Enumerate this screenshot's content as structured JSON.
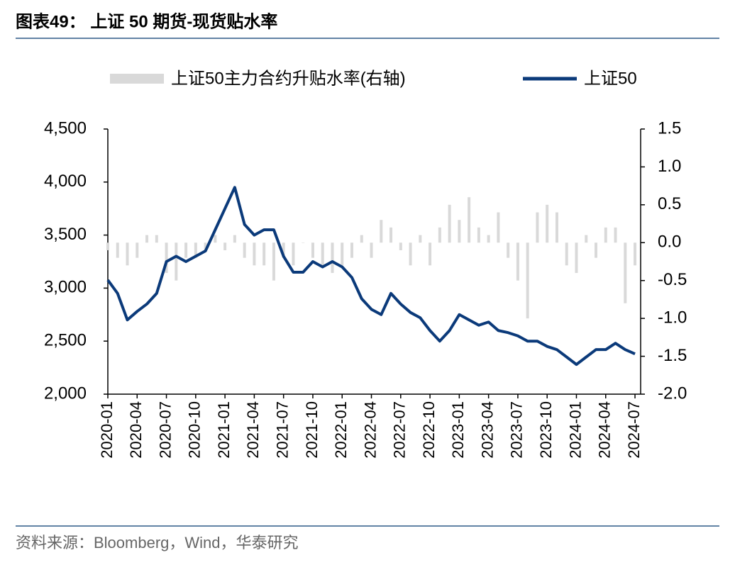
{
  "chart_data": {
    "type": "line",
    "title": "图表49： 上证 50 期货-现货贴水率",
    "source": "资料来源：Bloomberg，Wind，华泰研究",
    "categories": [
      "2020-01",
      "2020-02",
      "2020-03",
      "2020-04",
      "2020-05",
      "2020-06",
      "2020-07",
      "2020-08",
      "2020-09",
      "2020-10",
      "2020-11",
      "2020-12",
      "2021-01",
      "2021-02",
      "2021-03",
      "2021-04",
      "2021-05",
      "2021-06",
      "2021-07",
      "2021-08",
      "2021-09",
      "2021-10",
      "2021-11",
      "2021-12",
      "2022-01",
      "2022-02",
      "2022-03",
      "2022-04",
      "2022-05",
      "2022-06",
      "2022-07",
      "2022-08",
      "2022-09",
      "2022-10",
      "2022-11",
      "2022-12",
      "2023-01",
      "2023-02",
      "2023-03",
      "2023-04",
      "2023-05",
      "2023-06",
      "2023-07",
      "2023-08",
      "2023-09",
      "2023-10",
      "2023-11",
      "2023-12",
      "2024-01",
      "2024-02",
      "2024-03",
      "2024-04",
      "2024-05",
      "2024-06",
      "2024-07"
    ],
    "series": [
      {
        "name": "上证50主力合约升贴水率(右轴)",
        "type": "bar",
        "axis": "y2",
        "color": "#d9d9d9",
        "values": [
          -0.1,
          -0.2,
          -0.3,
          -0.2,
          0.1,
          0.1,
          -0.4,
          -0.5,
          -0.2,
          -0.2,
          -0.1,
          0.1,
          -0.1,
          0.1,
          -0.2,
          -0.3,
          -0.3,
          -0.5,
          -0.2,
          -0.3,
          0.0,
          -0.2,
          -0.3,
          -0.4,
          -0.3,
          -0.2,
          0.1,
          -0.2,
          0.3,
          0.2,
          -0.1,
          -0.3,
          0.1,
          -0.3,
          0.2,
          0.5,
          0.3,
          0.6,
          0.2,
          0.1,
          0.4,
          -0.2,
          -0.5,
          -1.0,
          0.4,
          0.5,
          0.4,
          -0.3,
          -0.4,
          0.1,
          -0.2,
          0.2,
          0.2,
          -0.8,
          -0.3
        ]
      },
      {
        "name": "上证50",
        "type": "line",
        "color": "#0b3a7a",
        "values": [
          3076,
          2950,
          2700,
          2780,
          2850,
          2950,
          3250,
          3300,
          3250,
          3300,
          3350,
          3550,
          3750,
          3950,
          3600,
          3500,
          3550,
          3550,
          3300,
          3150,
          3150,
          3250,
          3200,
          3250,
          3200,
          3100,
          2900,
          2800,
          2750,
          2950,
          2850,
          2770,
          2720,
          2600,
          2500,
          2600,
          2750,
          2700,
          2650,
          2680,
          2600,
          2580,
          2550,
          2500,
          2500,
          2450,
          2420,
          2350,
          2280,
          2350,
          2420,
          2420,
          2480,
          2420,
          2380
        ]
      }
    ],
    "ylim": [
      2000,
      4500
    ],
    "yticks": [
      {
        "value": 2000,
        "label": "2,000"
      },
      {
        "value": 2500,
        "label": "2,500"
      },
      {
        "value": 3000,
        "label": "3,000"
      },
      {
        "value": 3500,
        "label": "3,500"
      },
      {
        "value": 4000,
        "label": "4,000"
      },
      {
        "value": 4500,
        "label": "4,500"
      }
    ],
    "y2lim": [
      -2.0,
      1.5
    ],
    "y2ticks": [
      {
        "value": -2.0,
        "label": "-2.0"
      },
      -1.5,
      {
        "value": -1.0,
        "label": "-1.0"
      },
      -0.5,
      {
        "value": 0.0,
        "label": "0.0"
      },
      0.5,
      {
        "value": 1.0,
        "label": "1.0"
      },
      1.5
    ]
  }
}
